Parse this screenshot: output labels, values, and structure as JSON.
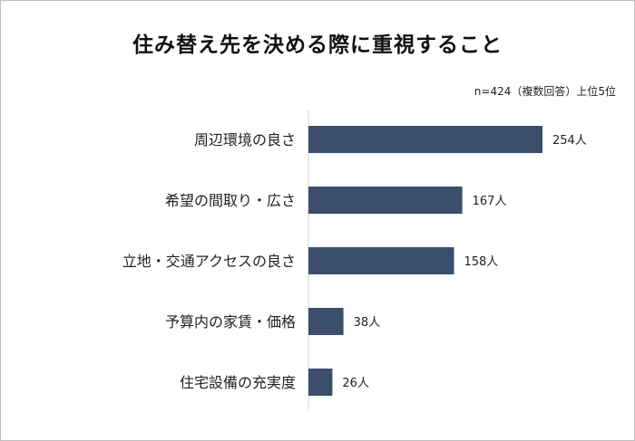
{
  "title": "住み替え先を決める際に重視すること",
  "note": "n=424（複数回答）上位5位",
  "chart_data": {
    "type": "bar",
    "orientation": "horizontal",
    "categories": [
      "周辺環境の良さ",
      "希望の間取り・広さ",
      "立地・交通アクセスの良さ",
      "予算内の家賃・価格",
      "住宅設備の充実度"
    ],
    "values": [
      254,
      167,
      158,
      38,
      26
    ],
    "value_labels": [
      "254人",
      "167人",
      "158人",
      "38人",
      "26人"
    ],
    "unit": "人",
    "xlim": [
      0,
      270
    ],
    "bar_color": "#3b4e6b",
    "grid": false,
    "legend": "none"
  }
}
